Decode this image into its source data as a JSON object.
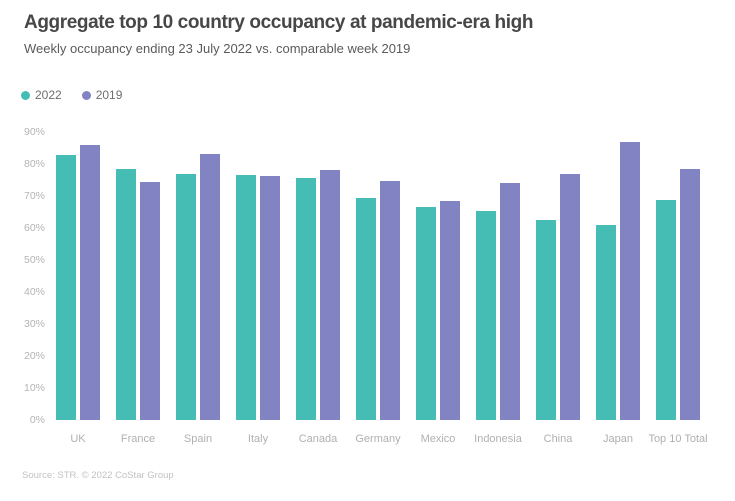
{
  "header": {
    "title": "Aggregate top 10 country occupancy at pandemic-era high",
    "subtitle": "Weekly occupancy ending 23 July 2022 vs. comparable week 2019"
  },
  "legend": [
    {
      "label": "2022",
      "color": "#45bdb4"
    },
    {
      "label": "2019",
      "color": "#8183c2"
    }
  ],
  "colors": {
    "series_2022": "#45bdb4",
    "series_2019": "#8183c2",
    "title_text": "#474747",
    "axis_text": "#b4b4b4"
  },
  "chart_data": {
    "type": "bar",
    "categories": [
      "UK",
      "France",
      "Spain",
      "Italy",
      "Canada",
      "Germany",
      "Mexico",
      "Indonesia",
      "China",
      "Japan",
      "Top 10 Total"
    ],
    "series": [
      {
        "name": "2022",
        "color": "#45bdb4",
        "values": [
          82.9,
          78.4,
          76.9,
          76.6,
          75.5,
          69.3,
          66.7,
          65.2,
          62.5,
          61.0,
          68.7
        ]
      },
      {
        "name": "2019",
        "color": "#8183c2",
        "values": [
          86.1,
          74.3,
          83.1,
          76.3,
          78.2,
          74.6,
          68.3,
          74.0,
          77.0,
          86.8,
          78.3
        ]
      }
    ],
    "title": "Aggregate top 10 country occupancy at pandemic-era high",
    "subtitle": "Weekly occupancy ending 23 July 2022 vs. comparable week 2019",
    "xlabel": "",
    "ylabel": "",
    "ylim": [
      0,
      90
    ],
    "y_ticks": [
      "0%",
      "10%",
      "20%",
      "30%",
      "40%",
      "50%",
      "60%",
      "70%",
      "80%",
      "90%"
    ],
    "grid": false,
    "legend_position": "top-left"
  },
  "footer": {
    "source": "Source: STR. © 2022 CoStar Group"
  }
}
